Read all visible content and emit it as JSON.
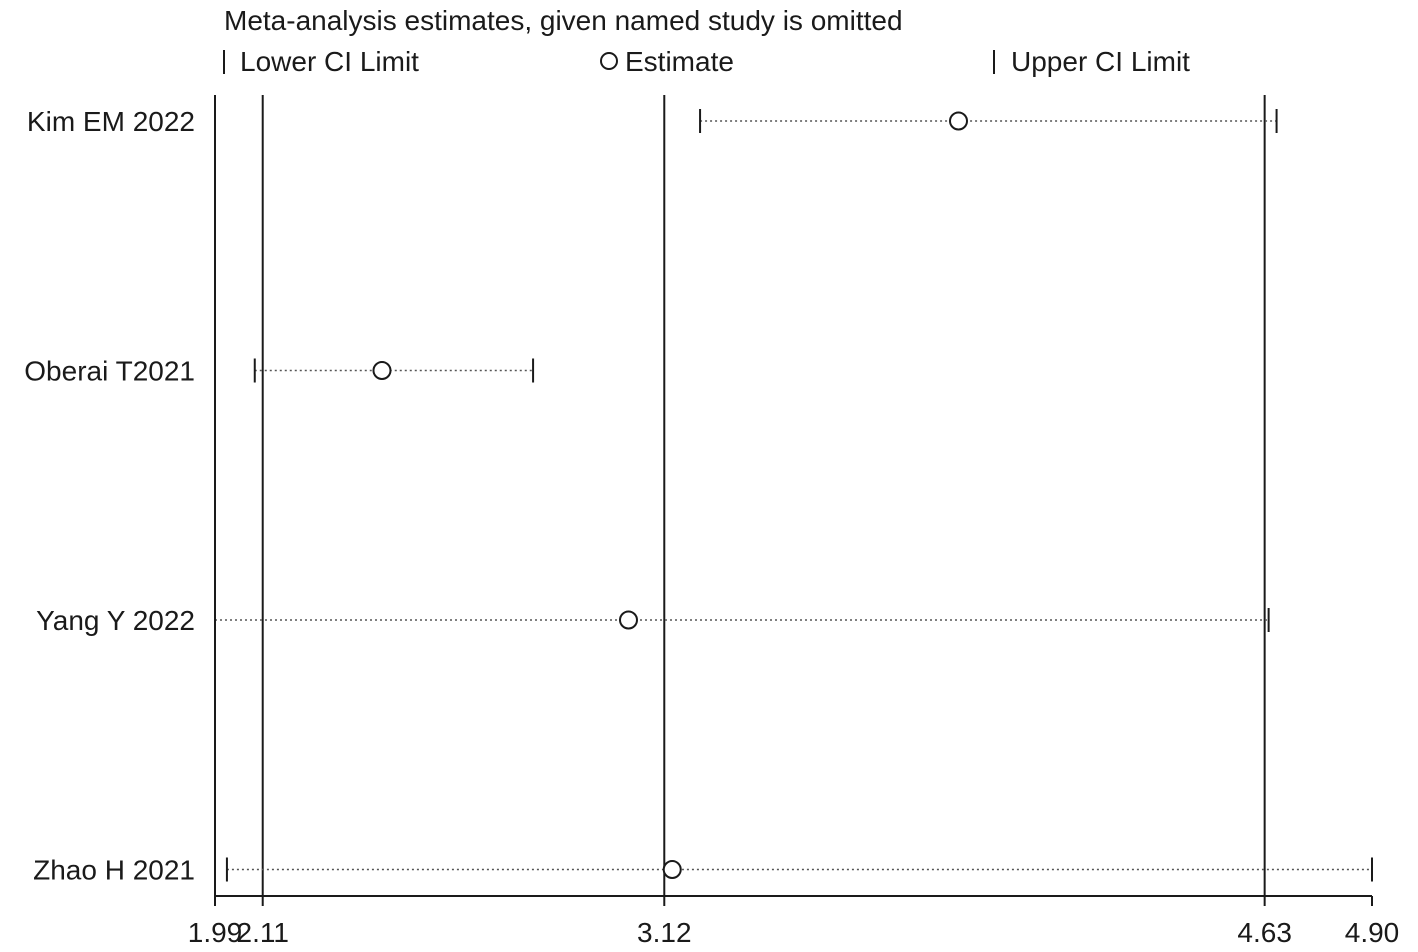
{
  "chart_data": {
    "type": "scatter",
    "title": "Meta-analysis estimates, given named study is omitted",
    "legend": {
      "placement": "top",
      "items": [
        {
          "key": "lower",
          "label": "Lower CI Limit",
          "symbol": "tick"
        },
        {
          "key": "estimate",
          "label": "Estimate",
          "symbol": "circle"
        },
        {
          "key": "upper",
          "label": "Upper CI Limit",
          "symbol": "tick"
        }
      ]
    },
    "xlim": [
      1.99,
      4.9
    ],
    "x_ticks": [
      {
        "value": 1.99,
        "label": "1.99"
      },
      {
        "value": 2.11,
        "label": "2.11"
      },
      {
        "value": 3.12,
        "label": "3.12"
      },
      {
        "value": 4.63,
        "label": "4.63"
      },
      {
        "value": 4.9,
        "label": "4.90"
      }
    ],
    "reference_lines": [
      2.11,
      3.12,
      4.63
    ],
    "studies": [
      {
        "name": "Kim EM 2022",
        "lower": 3.21,
        "estimate": 3.86,
        "upper": 4.66
      },
      {
        "name": "Oberai T2021",
        "lower": 2.09,
        "estimate": 2.41,
        "upper": 2.79
      },
      {
        "name": "Yang Y 2022",
        "lower": 1.99,
        "estimate": 3.03,
        "upper": 4.64
      },
      {
        "name": "Zhao H 2021",
        "lower": 2.02,
        "estimate": 3.14,
        "upper": 4.9
      }
    ],
    "grid": false
  }
}
